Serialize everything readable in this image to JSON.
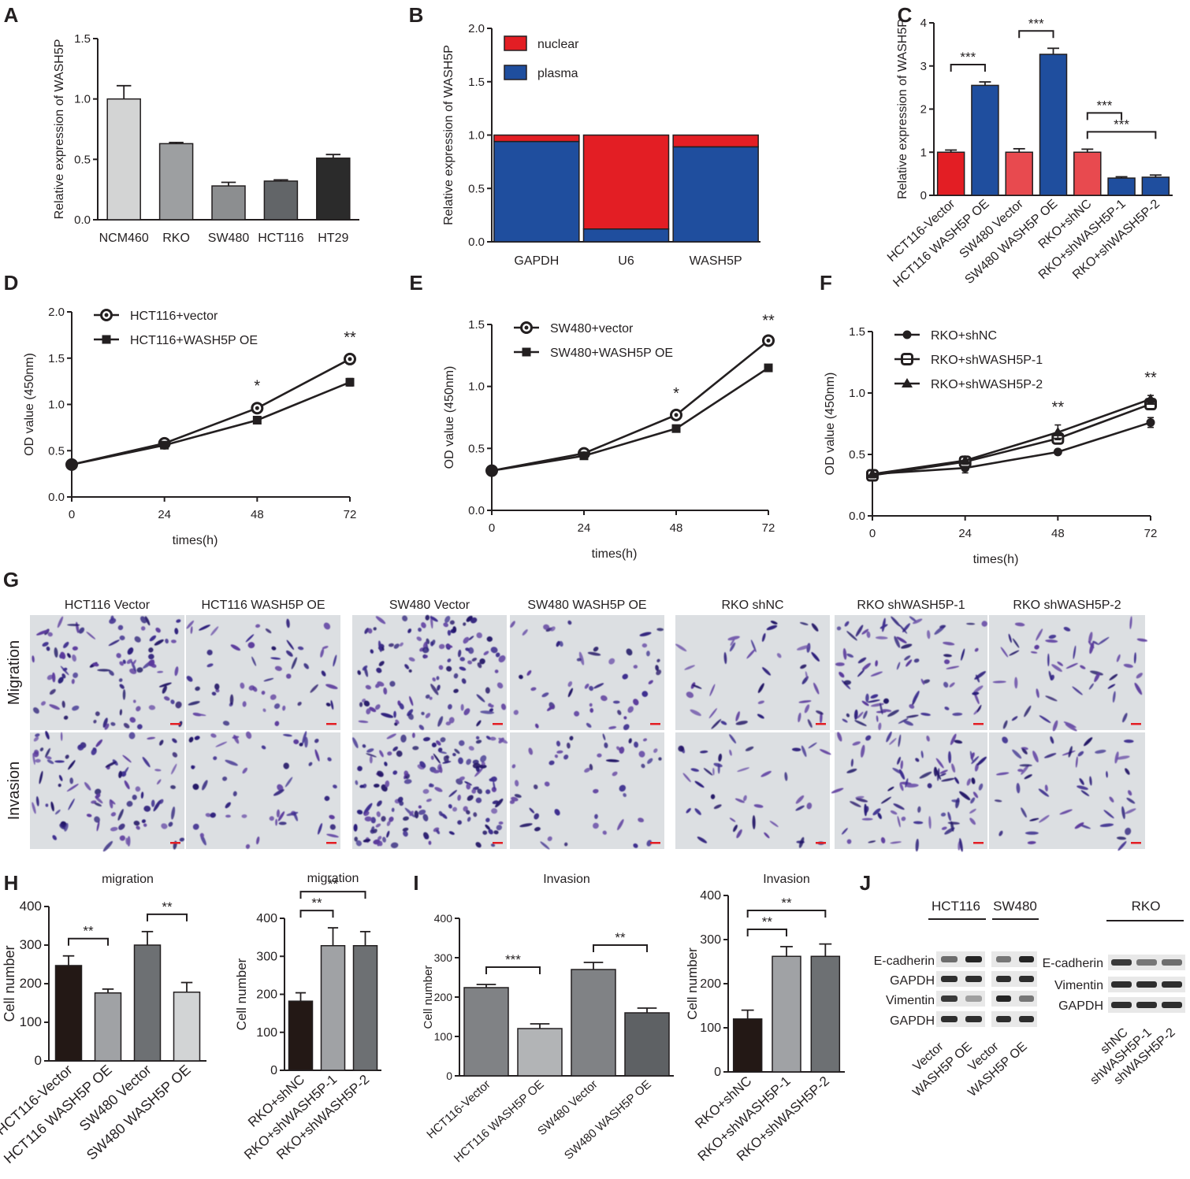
{
  "colors": {
    "axis": "#231f20",
    "red": "#e31e24",
    "blue": "#1f4e9e",
    "stain_bg": "#dcdfe2",
    "stain_cell": "#3b2f8a",
    "scalebar": "#e31e24"
  },
  "chart_data": [
    {
      "panel": "A",
      "type": "bar",
      "categories": [
        "NCM460",
        "RKO",
        "SW480",
        "HCT116",
        "HT29"
      ],
      "values": [
        1.0,
        0.63,
        0.28,
        0.32,
        0.51
      ],
      "errors": [
        0.11,
        0.01,
        0.03,
        0.01,
        0.03
      ],
      "ylabel": "Relative expression of WASH5P",
      "ylim": [
        0,
        1.5
      ],
      "yticks": [
        "0.0",
        "0.5",
        "1.0",
        "1.5"
      ],
      "bar_colors": [
        "#d3d4d4",
        "#9d9fa1",
        "#8c8e90",
        "#626568",
        "#2b2b2b"
      ]
    },
    {
      "panel": "B",
      "type": "bar",
      "stacked": true,
      "categories": [
        "GAPDH",
        "U6",
        "WASH5P"
      ],
      "series": [
        {
          "name": "plasma",
          "values": [
            0.94,
            0.12,
            0.89
          ],
          "color": "#1f4e9e"
        },
        {
          "name": "nuclear",
          "values": [
            0.06,
            0.88,
            0.11
          ],
          "color": "#e31e24"
        }
      ],
      "legend_order": [
        "nuclear",
        "plasma"
      ],
      "legend": "top-left",
      "ylabel": "Relative expression of WASH5P",
      "ylim": [
        0,
        2.0
      ],
      "yticks": [
        "0.0",
        "0.5",
        "1.0",
        "1.5",
        "2.0"
      ]
    },
    {
      "panel": "C",
      "type": "bar",
      "categories": [
        "HCT116-Vector",
        "HCT116 WASH5P OE",
        "SW480 Vector",
        "SW480 WASH5P OE",
        "RKO+shNC",
        "RKO+shWASH5P-1",
        "RKO+shWASH5P-2"
      ],
      "values": [
        1.0,
        2.55,
        1.0,
        3.27,
        1.0,
        0.4,
        0.42
      ],
      "errors": [
        0.05,
        0.08,
        0.08,
        0.14,
        0.07,
        0.03,
        0.05
      ],
      "ylabel": "Relative expression of WASH5P",
      "ylim": [
        0,
        4
      ],
      "yticks": [
        "0",
        "1",
        "2",
        "3",
        "4"
      ],
      "bar_colors": [
        "#e31e24",
        "#1f4e9e",
        "#e84a4f",
        "#1f4e9e",
        "#e84a4f",
        "#1f4e9e",
        "#1f4e9e"
      ],
      "significance": [
        {
          "from": 0,
          "to": 1,
          "label": "***"
        },
        {
          "from": 2,
          "to": 3,
          "label": "***"
        },
        {
          "from": 4,
          "to": 6,
          "label": "***"
        },
        {
          "from": 4,
          "to": 5,
          "label": "***"
        }
      ]
    },
    {
      "panel": "D",
      "type": "line",
      "x": [
        0,
        24,
        48,
        72
      ],
      "series": [
        {
          "name": "HCT116+vector",
          "values": [
            0.35,
            0.58,
            0.96,
            1.49
          ],
          "errors": [
            0.02,
            0.02,
            0.05,
            0.04
          ],
          "marker": "circle-ring"
        },
        {
          "name": "HCT116+WASH5P OE",
          "values": [
            0.35,
            0.56,
            0.83,
            1.24
          ],
          "errors": [
            0.02,
            0.02,
            0.03,
            0.04
          ],
          "marker": "square"
        }
      ],
      "annotations": [
        {
          "x": 48,
          "label": "*"
        },
        {
          "x": 72,
          "label": "**"
        }
      ],
      "xlabel": "times(h)",
      "ylabel": "OD value (450nm)",
      "xlim": [
        0,
        72
      ],
      "ylim": [
        0,
        2.0
      ],
      "yticks": [
        "0.0",
        "0.5",
        "1.0",
        "1.5",
        "2.0"
      ],
      "xticks": [
        "0",
        "24",
        "48",
        "72"
      ]
    },
    {
      "panel": "E",
      "type": "line",
      "x": [
        0,
        24,
        48,
        72
      ],
      "series": [
        {
          "name": "SW480+vector",
          "values": [
            0.32,
            0.46,
            0.77,
            1.37
          ],
          "errors": [
            0.02,
            0.02,
            0.03,
            0.02
          ],
          "marker": "circle-ring"
        },
        {
          "name": "SW480+WASH5P OE",
          "values": [
            0.32,
            0.44,
            0.66,
            1.15
          ],
          "errors": [
            0.02,
            0.02,
            0.02,
            0.02
          ],
          "marker": "square"
        }
      ],
      "annotations": [
        {
          "x": 48,
          "label": "*"
        },
        {
          "x": 72,
          "label": "**"
        }
      ],
      "xlabel": "times(h)",
      "ylabel": "OD value (450nm)",
      "xlim": [
        0,
        72
      ],
      "ylim": [
        0,
        1.5
      ],
      "yticks": [
        "0.0",
        "0.5",
        "1.0",
        "1.5"
      ],
      "xticks": [
        "0",
        "24",
        "48",
        "72"
      ]
    },
    {
      "panel": "F",
      "type": "line",
      "x": [
        0,
        24,
        48,
        72
      ],
      "series": [
        {
          "name": "RKO+shNC",
          "values": [
            0.34,
            0.39,
            0.52,
            0.76
          ],
          "errors": [
            0.03,
            0.04,
            0.02,
            0.04
          ],
          "marker": "circle"
        },
        {
          "name": "RKO+shWASH5P-1",
          "values": [
            0.33,
            0.44,
            0.63,
            0.91
          ],
          "errors": [
            0.03,
            0.03,
            0.04,
            0.03
          ],
          "marker": "square-ring"
        },
        {
          "name": "RKO+shWASH5P-2",
          "values": [
            0.34,
            0.45,
            0.68,
            0.95
          ],
          "errors": [
            0.03,
            0.03,
            0.06,
            0.03
          ],
          "marker": "triangle"
        }
      ],
      "annotations": [
        {
          "x": 48,
          "label": "**"
        },
        {
          "x": 72,
          "label": "**"
        }
      ],
      "xlabel": "times(h)",
      "ylabel": "OD value (450nm)",
      "xlim": [
        0,
        72
      ],
      "ylim": [
        0,
        1.5
      ],
      "yticks": [
        "0.0",
        "0.5",
        "1.0",
        "1.5"
      ],
      "xticks": [
        "0",
        "24",
        "48",
        "72"
      ]
    },
    {
      "panel": "H1",
      "type": "bar",
      "title": "migration",
      "categories": [
        "HCT116-Vector",
        "HCT116 WASH5P OE",
        "SW480 Vector",
        "SW480 WASH5P OE"
      ],
      "values": [
        247,
        176,
        300,
        178
      ],
      "errors": [
        25,
        10,
        35,
        25
      ],
      "ylabel": "Cell number",
      "ylim": [
        0,
        400
      ],
      "yticks": [
        "0",
        "100",
        "200",
        "300",
        "400"
      ],
      "bar_colors": [
        "#231815",
        "#a0a2a5",
        "#6d7073",
        "#d2d4d5"
      ],
      "significance": [
        {
          "from": 0,
          "to": 1,
          "label": "**"
        },
        {
          "from": 2,
          "to": 3,
          "label": "**"
        }
      ]
    },
    {
      "panel": "H2",
      "type": "bar",
      "title": "migration",
      "categories": [
        "RKO+shNC",
        "RKO+shWASH5P-1",
        "RKO+shWASH5P-2"
      ],
      "values": [
        182,
        328,
        328
      ],
      "errors": [
        22,
        47,
        37
      ],
      "ylabel": "Cell number",
      "ylim": [
        0,
        400
      ],
      "yticks": [
        "0",
        "100",
        "200",
        "300",
        "400"
      ],
      "bar_colors": [
        "#231815",
        "#a0a2a5",
        "#6d7073"
      ],
      "significance": [
        {
          "from": 0,
          "to": 1,
          "label": "**"
        },
        {
          "from": 0,
          "to": 2,
          "label": "**"
        }
      ]
    },
    {
      "panel": "I1",
      "type": "bar",
      "title": "Invasion",
      "categories": [
        "HCT116-Vector",
        "HCT116 WASH5P OE",
        "SW480 Vector",
        "SW480 WASH5P OE"
      ],
      "values": [
        224,
        120,
        270,
        160
      ],
      "errors": [
        8,
        12,
        18,
        12
      ],
      "ylabel": "Cell number",
      "ylim": [
        0,
        400
      ],
      "yticks": [
        "0",
        "100",
        "200",
        "300",
        "400"
      ],
      "bar_colors": [
        "#808285",
        "#b2b4b6",
        "#808285",
        "#5e6164"
      ],
      "significance": [
        {
          "from": 0,
          "to": 1,
          "label": "***"
        },
        {
          "from": 2,
          "to": 3,
          "label": "**"
        }
      ]
    },
    {
      "panel": "I2",
      "type": "bar",
      "title": "Invasion",
      "categories": [
        "RKO+shNC",
        "RKO+shWASH5P-1",
        "RKO+shWASH5P-2"
      ],
      "values": [
        120,
        262,
        262
      ],
      "errors": [
        20,
        22,
        28
      ],
      "ylabel": "Cell number",
      "ylim": [
        0,
        400
      ],
      "yticks": [
        "0",
        "100",
        "200",
        "300",
        "400"
      ],
      "bar_colors": [
        "#231815",
        "#a0a2a5",
        "#6d7073"
      ],
      "significance": [
        {
          "from": 0,
          "to": 1,
          "label": "**"
        },
        {
          "from": 0,
          "to": 2,
          "label": "**"
        }
      ]
    }
  ],
  "panelG": {
    "column_titles": [
      "HCT116 Vector",
      "HCT116 WASH5P OE",
      "SW480 Vector",
      "SW480 WASH5P OE",
      "RKO shNC",
      "RKO shWASH5P-1",
      "RKO shWASH5P-2"
    ],
    "row_titles": [
      "Migration",
      "Invasion"
    ]
  },
  "panelJ": {
    "left_groups": [
      "HCT116",
      "SW480"
    ],
    "left_rows": [
      "E-cadherin",
      "GAPDH",
      "Vimentin",
      "GAPDH"
    ],
    "left_lanes": [
      "Vector",
      "WASH5P OE",
      "Vector",
      "WASH5P OE"
    ],
    "right_group": "RKO",
    "right_rows": [
      "E-cadherin",
      "Vimentin",
      "GAPDH"
    ],
    "right_lanes": [
      "shNC",
      "shWASH5P-1",
      "shWASH5P-2"
    ]
  },
  "panel_letters": [
    "A",
    "B",
    "C",
    "D",
    "E",
    "F",
    "G",
    "H",
    "I",
    "J"
  ]
}
